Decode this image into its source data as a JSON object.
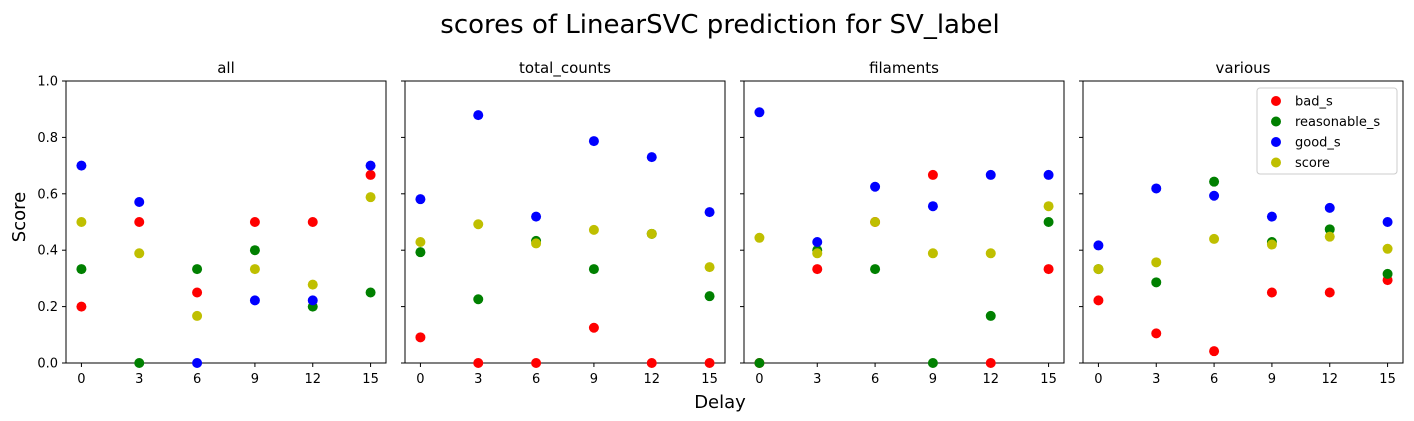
{
  "chart_data": {
    "type": "scatter",
    "title": "scores of LinearSVC prediction for SV_label",
    "xlabel": "Delay",
    "ylabel": "Score",
    "x": [
      0,
      3,
      6,
      9,
      12,
      15
    ],
    "xticks": [
      "0",
      "3",
      "6",
      "9",
      "12",
      "15"
    ],
    "yticks": [
      "0.0",
      "0.2",
      "0.4",
      "0.6",
      "0.8",
      "1.0"
    ],
    "ylim": [
      0,
      1
    ],
    "xlim": [
      -0.8,
      15.8
    ],
    "legend": {
      "location": "upper right of last panel",
      "entries": [
        "bad_s",
        "reasonable_s",
        "good_s",
        "score"
      ]
    },
    "colors": {
      "bad_s": "#ff0000",
      "reasonable_s": "#008000",
      "good_s": "#0000ff",
      "score": "#bfbf00"
    },
    "panels": [
      {
        "title": "all",
        "series": [
          {
            "name": "bad_s",
            "values": [
              0.2,
              0.5,
              0.25,
              0.5,
              0.5,
              0.667
            ]
          },
          {
            "name": "reasonable_s",
            "values": [
              0.333,
              0.0,
              0.333,
              0.4,
              0.2,
              0.25
            ]
          },
          {
            "name": "good_s",
            "values": [
              0.7,
              0.571,
              0.0,
              0.222,
              0.222,
              0.7
            ]
          },
          {
            "name": "score",
            "values": [
              0.5,
              0.389,
              0.167,
              0.333,
              0.278,
              0.588
            ]
          }
        ]
      },
      {
        "title": "total_counts",
        "series": [
          {
            "name": "bad_s",
            "values": [
              0.091,
              0.0,
              0.0,
              0.125,
              0.0,
              0.0
            ]
          },
          {
            "name": "reasonable_s",
            "values": [
              0.393,
              0.226,
              0.433,
              0.333,
              0.458,
              0.237
            ]
          },
          {
            "name": "good_s",
            "values": [
              0.581,
              0.879,
              0.519,
              0.787,
              0.73,
              0.535
            ]
          },
          {
            "name": "score",
            "values": [
              0.429,
              0.492,
              0.424,
              0.472,
              0.458,
              0.34
            ]
          }
        ]
      },
      {
        "title": "filaments",
        "series": [
          {
            "name": "bad_s",
            "values": [
              0.0,
              0.333,
              0.5,
              0.667,
              0.0,
              0.333
            ]
          },
          {
            "name": "reasonable_s",
            "values": [
              0.0,
              0.4,
              0.333,
              0.0,
              0.167,
              0.5
            ]
          },
          {
            "name": "good_s",
            "values": [
              0.889,
              0.429,
              0.625,
              0.556,
              0.667,
              0.667
            ]
          },
          {
            "name": "score",
            "values": [
              0.444,
              0.389,
              0.5,
              0.389,
              0.389,
              0.556
            ]
          }
        ]
      },
      {
        "title": "various",
        "series": [
          {
            "name": "bad_s",
            "values": [
              0.222,
              0.105,
              0.042,
              0.25,
              0.25,
              0.294
            ]
          },
          {
            "name": "reasonable_s",
            "values": [
              0.333,
              0.286,
              0.643,
              0.429,
              0.474,
              0.316
            ]
          },
          {
            "name": "good_s",
            "values": [
              0.417,
              0.619,
              0.593,
              0.519,
              0.55,
              0.5
            ]
          },
          {
            "name": "score",
            "values": [
              0.333,
              0.357,
              0.44,
              0.42,
              0.448,
              0.405
            ]
          }
        ]
      }
    ]
  }
}
